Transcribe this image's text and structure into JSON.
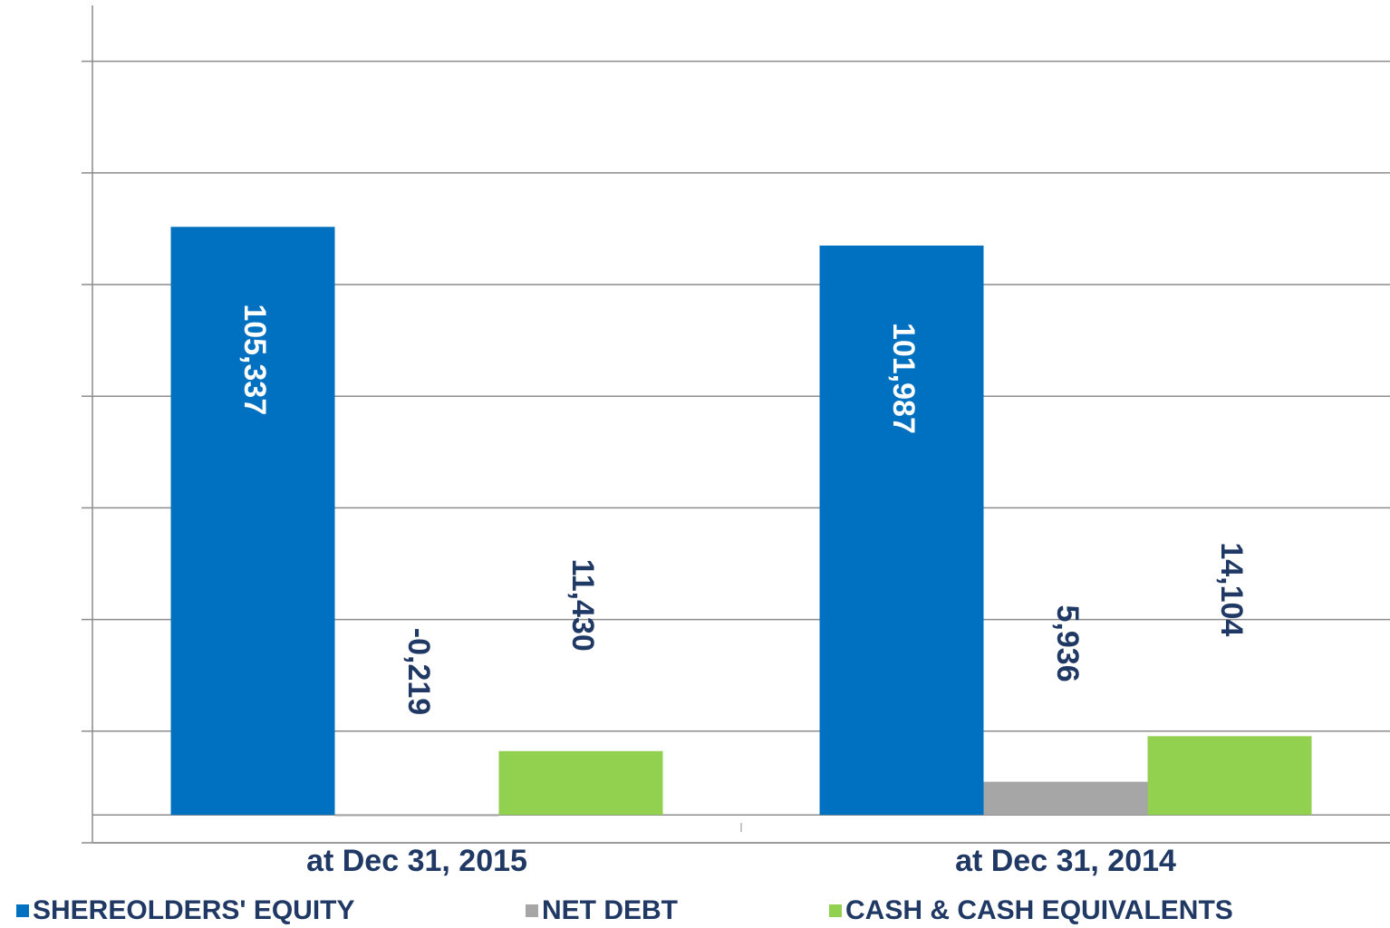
{
  "chart_data": {
    "type": "bar",
    "categories": [
      "at Dec 31, 2015",
      "at Dec 31, 2014"
    ],
    "series": [
      {
        "name": "SHEREOLDERS' EQUITY",
        "color": "#0070c0",
        "values": [
          105337,
          101987
        ],
        "value_labels": [
          "105,337",
          "101,987"
        ]
      },
      {
        "name": "NET DEBT",
        "color": "#a6a6a6",
        "values": [
          -219,
          5936
        ],
        "value_labels": [
          "-0,219",
          "5,936"
        ]
      },
      {
        "name": "CASH & CASH EQUIVALENTS",
        "color": "#92d050",
        "values": [
          11430,
          14104
        ],
        "value_labels": [
          "11,430",
          "14,104"
        ]
      }
    ],
    "ylim": [
      -5000,
      145000
    ],
    "yticks": [
      -5000,
      15000,
      35000,
      55000,
      75000,
      95000,
      115000,
      135000
    ],
    "grid": true,
    "legend": "bottom"
  }
}
